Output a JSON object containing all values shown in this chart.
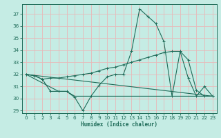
{
  "xlabel": "Humidex (Indice chaleur)",
  "xlim": [
    -0.5,
    23.5
  ],
  "ylim": [
    28.8,
    37.8
  ],
  "yticks": [
    29,
    30,
    31,
    32,
    33,
    34,
    35,
    36,
    37
  ],
  "xticks": [
    0,
    1,
    2,
    3,
    4,
    5,
    6,
    7,
    8,
    9,
    10,
    11,
    12,
    13,
    14,
    15,
    16,
    17,
    18,
    19,
    20,
    21,
    22,
    23
  ],
  "bg_color": "#c5ece4",
  "line_color": "#1e6b58",
  "grid_color": "#e8b8b8",
  "series": {
    "line_jagged": {
      "x": [
        0,
        1,
        2,
        3,
        4,
        5,
        6,
        7,
        8,
        9,
        10,
        11,
        12,
        13,
        14,
        15,
        16,
        17,
        18,
        19,
        20,
        21,
        22,
        23
      ],
      "y": [
        32.0,
        31.9,
        31.6,
        30.6,
        30.6,
        30.6,
        30.1,
        29.0,
        30.2,
        31.1,
        31.8,
        32.0,
        32.0,
        33.9,
        37.4,
        36.8,
        36.2,
        34.7,
        30.2,
        33.9,
        31.7,
        30.2,
        31.0,
        30.2
      ],
      "marker": true
    },
    "line_trend_up": {
      "x": [
        0,
        1,
        2,
        3,
        4,
        5,
        6,
        7,
        8,
        9,
        10,
        11,
        12,
        13,
        14,
        15,
        16,
        17,
        18,
        19,
        20,
        21,
        22,
        23
      ],
      "y": [
        32.0,
        31.9,
        31.6,
        31.7,
        31.7,
        31.8,
        31.9,
        32.0,
        32.1,
        32.3,
        32.5,
        32.6,
        32.8,
        33.0,
        33.2,
        33.4,
        33.6,
        33.8,
        33.9,
        33.9,
        33.2,
        30.7,
        30.2,
        30.2
      ],
      "marker": true
    },
    "line_flat_low": {
      "x": [
        0,
        4,
        5,
        6,
        7,
        8,
        9,
        10,
        11,
        12,
        13,
        14,
        15,
        16,
        17,
        18,
        19,
        20,
        21,
        22,
        23
      ],
      "y": [
        32.0,
        30.6,
        30.6,
        30.2,
        30.2,
        30.2,
        30.2,
        30.2,
        30.2,
        30.2,
        30.2,
        30.2,
        30.2,
        30.2,
        30.2,
        30.2,
        30.2,
        30.2,
        30.2,
        30.2,
        30.2
      ],
      "marker": false
    },
    "line_diagonal": {
      "x": [
        0,
        23
      ],
      "y": [
        32.0,
        30.2
      ],
      "marker": false
    }
  }
}
